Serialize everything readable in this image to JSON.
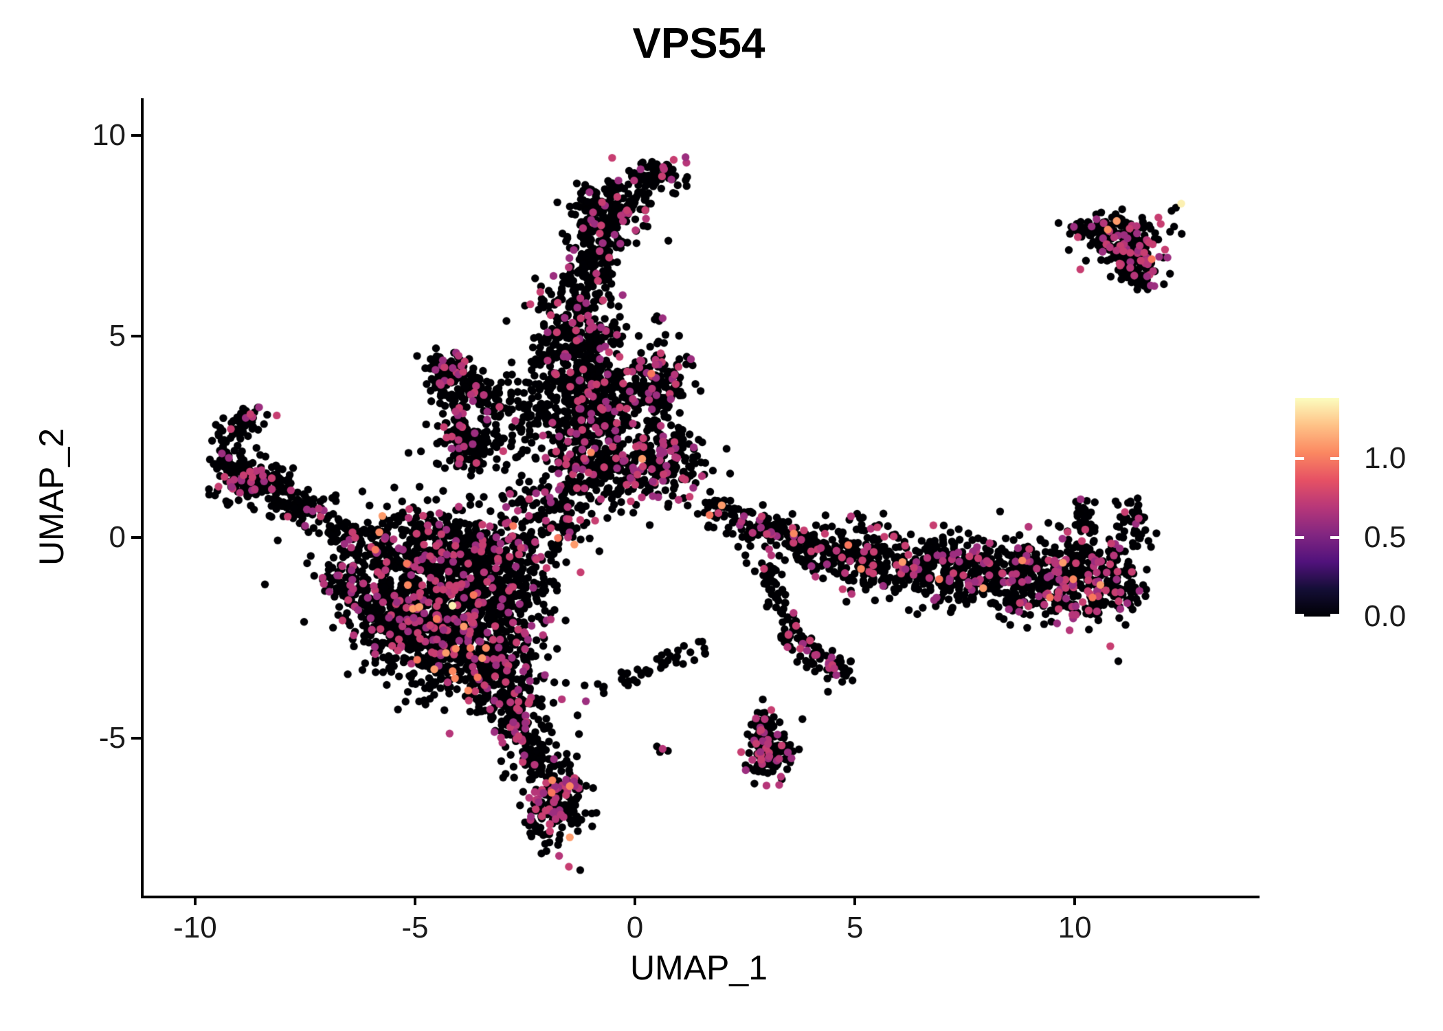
{
  "chart_data": {
    "type": "scatter",
    "title": "VPS54",
    "xlabel": "UMAP_1",
    "ylabel": "UMAP_2",
    "xlim": [
      -11.17,
      14.2
    ],
    "ylim": [
      -8.91,
      10.92
    ],
    "grid": false,
    "legend_position": "right",
    "x_ticks": [
      {
        "v": -10,
        "label": "-10"
      },
      {
        "v": -5,
        "label": "-5"
      },
      {
        "v": 0,
        "label": "0"
      },
      {
        "v": 5,
        "label": "5"
      },
      {
        "v": 10,
        "label": "10"
      }
    ],
    "y_ticks": [
      {
        "v": -5,
        "label": "-5"
      },
      {
        "v": 0,
        "label": "0"
      },
      {
        "v": 5,
        "label": "5"
      },
      {
        "v": 10,
        "label": "10"
      }
    ],
    "point_radius": 5.7,
    "seed": 42,
    "palette": {
      "black": "#000004",
      "mid": [
        "#9c2e7f",
        "#b63679",
        "#c73e71"
      ],
      "high": [
        "#f8765c",
        "#fb8861",
        "#fd9b6b"
      ],
      "max": "#fcf0b2"
    },
    "colorbar": {
      "max_value": 1.38,
      "ticks": [
        {
          "v": 0.0,
          "label": "0.0"
        },
        {
          "v": 0.5,
          "label": "0.5"
        },
        {
          "v": 1.0,
          "label": "1.0"
        }
      ],
      "stops": [
        [
          0,
          "#000004"
        ],
        [
          0.125,
          "#140e36"
        ],
        [
          0.25,
          "#51127c"
        ],
        [
          0.375,
          "#822681"
        ],
        [
          0.5,
          "#b73779"
        ],
        [
          0.625,
          "#e65164"
        ],
        [
          0.75,
          "#fb8861"
        ],
        [
          0.875,
          "#fec287"
        ],
        [
          1,
          "#fcfdbf"
        ]
      ]
    },
    "clusters": [
      {
        "id": "top-small-blob",
        "kind": "gauss",
        "cx": 0.55,
        "cy": 9.05,
        "sx": 0.3,
        "sy": 0.22,
        "n": 70,
        "mix": {
          "mid": 0.14,
          "high": 0.01
        }
      },
      {
        "id": "top-main-blob",
        "kind": "gauss",
        "cx": -0.55,
        "cy": 8.15,
        "sx": 0.5,
        "sy": 0.33,
        "n": 170,
        "mix": {
          "mid": 0.12
        }
      },
      {
        "id": "top-blob-bridge",
        "kind": "gauss",
        "cx": 0.0,
        "cy": 8.72,
        "sx": 0.3,
        "sy": 0.18,
        "n": 16,
        "mix": {
          "mid": 0.06
        }
      },
      {
        "id": "streak-upper",
        "kind": "line",
        "x1": -0.75,
        "y1": 7.7,
        "x2": -1.15,
        "y2": 6.3,
        "w": 0.3,
        "n": 130,
        "mix": {
          "mid": 0.09
        }
      },
      {
        "id": "streak-mid",
        "kind": "gauss",
        "cx": -1.35,
        "cy": 5.35,
        "sx": 0.5,
        "sy": 0.7,
        "n": 250,
        "mix": {
          "mid": 0.1,
          "high": 0.004
        }
      },
      {
        "id": "streak-low",
        "kind": "gauss",
        "cx": -1.25,
        "cy": 4.0,
        "sx": 0.55,
        "sy": 0.5,
        "n": 220,
        "mix": {
          "mid": 0.11,
          "high": 0.008
        }
      },
      {
        "id": "column-mid",
        "kind": "gauss",
        "cx": -1.05,
        "cy": 2.95,
        "sx": 0.5,
        "sy": 0.5,
        "n": 170,
        "mix": {
          "mid": 0.12
        }
      },
      {
        "id": "column-low",
        "kind": "gauss",
        "cx": -0.95,
        "cy": 1.85,
        "sx": 0.6,
        "sy": 0.55,
        "n": 240,
        "mix": {
          "mid": 0.13,
          "high": 0.008
        }
      },
      {
        "id": "right-top-blob",
        "kind": "gauss",
        "cx": 0.5,
        "cy": 3.85,
        "sx": 0.35,
        "sy": 0.45,
        "n": 160,
        "mix": {
          "mid": 0.12,
          "high": 0.01
        }
      },
      {
        "id": "right-mid-band",
        "kind": "gauss",
        "cx": 0.6,
        "cy": 1.8,
        "sx": 0.55,
        "sy": 0.45,
        "n": 190,
        "mix": {
          "mid": 0.2,
          "high": 0.01
        }
      },
      {
        "id": "column-right-sparse",
        "kind": "gauss",
        "cx": -0.05,
        "cy": 2.95,
        "sx": 0.45,
        "sy": 0.6,
        "n": 60,
        "mix": {
          "mid": 0.1
        }
      },
      {
        "id": "triangle-left-edge",
        "kind": "line",
        "x1": -4.55,
        "y1": 4.3,
        "x2": -3.55,
        "y2": 1.75,
        "w": 0.17,
        "n": 115,
        "mix": {
          "mid": 0.1
        }
      },
      {
        "id": "triangle-right-edge",
        "kind": "line",
        "x1": -4.3,
        "y1": 4.35,
        "x2": -2.95,
        "y2": 2.95,
        "w": 0.2,
        "n": 95,
        "mix": {
          "mid": 0.09
        }
      },
      {
        "id": "triangle-fill",
        "kind": "gauss",
        "cx": -3.6,
        "cy": 2.35,
        "sx": 0.5,
        "sy": 0.4,
        "n": 115,
        "mix": {
          "mid": 0.1
        }
      },
      {
        "id": "triangle-apex",
        "kind": "gauss",
        "cx": -4.32,
        "cy": 4.25,
        "sx": 0.24,
        "sy": 0.18,
        "n": 55,
        "mix": {
          "mid": 0.12
        }
      },
      {
        "id": "triangle-neck",
        "kind": "gauss",
        "cx": -2.4,
        "cy": 3.3,
        "sx": 0.45,
        "sy": 0.55,
        "n": 65,
        "mix": {
          "mid": 0.08
        }
      },
      {
        "id": "left-hook-curve",
        "kind": "arc",
        "cx": -8.45,
        "cy": 2.15,
        "r": 0.85,
        "a1": 95,
        "a2": 262,
        "w": 0.18,
        "n": 115,
        "mix": {
          "mid": 0.12
        }
      },
      {
        "id": "left-hook-knot",
        "kind": "gauss",
        "cx": -8.9,
        "cy": 1.45,
        "sx": 0.32,
        "sy": 0.3,
        "n": 95,
        "mix": {
          "mid": 0.13
        }
      },
      {
        "id": "left-hook-arm",
        "kind": "line",
        "x1": -8.55,
        "y1": 1.5,
        "x2": -7.15,
        "y2": 0.4,
        "w": 0.25,
        "n": 125,
        "mix": {
          "mid": 0.1,
          "high": 0.008
        }
      },
      {
        "id": "left-hook-trail",
        "kind": "line",
        "x1": -7.1,
        "y1": 0.35,
        "x2": -6.35,
        "y2": 0.05,
        "w": 0.18,
        "n": 30,
        "mix": {
          "mid": 0.06
        }
      },
      {
        "id": "mass-top",
        "kind": "gauss",
        "cx": -4.6,
        "cy": -0.35,
        "sx": 1.15,
        "sy": 0.55,
        "n": 520,
        "mix": {
          "mid": 0.12,
          "high": 0.008
        }
      },
      {
        "id": "mass-core",
        "kind": "gauss",
        "cx": -4.55,
        "cy": -1.7,
        "sx": 1.0,
        "sy": 0.75,
        "n": 700,
        "mix": {
          "mid": 0.13,
          "high": 0.012
        }
      },
      {
        "id": "mass-right",
        "kind": "gauss",
        "cx": -3.0,
        "cy": -1.15,
        "sx": 0.6,
        "sy": 0.9,
        "n": 300,
        "mix": {
          "mid": 0.12,
          "high": 0.006
        }
      },
      {
        "id": "mass-bottom",
        "kind": "gauss",
        "cx": -3.85,
        "cy": -3.0,
        "sx": 0.7,
        "sy": 0.55,
        "n": 330,
        "mix": {
          "mid": 0.13,
          "high": 0.015,
          "max": 0.003
        }
      },
      {
        "id": "mass-tip",
        "kind": "gauss",
        "cx": -2.95,
        "cy": -3.9,
        "sx": 0.45,
        "sy": 0.4,
        "n": 135,
        "mix": {
          "mid": 0.12
        }
      },
      {
        "id": "mass-left-edge",
        "kind": "line",
        "x1": -6.85,
        "y1": -0.65,
        "x2": -5.1,
        "y2": -2.7,
        "w": 0.3,
        "n": 140,
        "mix": {
          "mid": 0.1
        }
      },
      {
        "id": "mass-column-neck",
        "kind": "gauss",
        "cx": -1.95,
        "cy": 0.65,
        "sx": 0.5,
        "sy": 0.5,
        "n": 115,
        "mix": {
          "mid": 0.12,
          "high": 0.008
        }
      },
      {
        "id": "mass-arm-down",
        "kind": "line",
        "x1": -2.85,
        "y1": -4.25,
        "x2": -2.2,
        "y2": -5.8,
        "w": 0.28,
        "n": 130,
        "mix": {
          "mid": 0.13
        }
      },
      {
        "id": "tail-leg",
        "kind": "gauss",
        "cx": -1.8,
        "cy": -6.6,
        "sx": 0.34,
        "sy": 0.55,
        "n": 200,
        "mix": {
          "mid": 0.22,
          "high": 0.012
        }
      },
      {
        "id": "bottom-bridge-arc",
        "kind": "line",
        "x1": -1.15,
        "y1": -3.95,
        "x2": 1.6,
        "y2": -2.7,
        "w": 0.14,
        "n": 42,
        "mix": {
          "mid": 0.07
        }
      },
      {
        "id": "comet-tail",
        "kind": "line",
        "x1": 2.8,
        "y1": -4.25,
        "x2": 3.0,
        "y2": -4.95,
        "w": 0.17,
        "n": 35,
        "mix": {
          "mid": 0.15
        }
      },
      {
        "id": "comet-head",
        "kind": "gauss",
        "cx": 3.08,
        "cy": -5.35,
        "sx": 0.27,
        "sy": 0.33,
        "n": 115,
        "mix": {
          "mid": 0.22,
          "high": 0.012
        }
      },
      {
        "id": "band-start-sparse",
        "kind": "line",
        "x1": 1.55,
        "y1": 0.85,
        "x2": 2.65,
        "y2": 0.2,
        "w": 0.2,
        "n": 55,
        "mix": {
          "mid": 0.09,
          "high": 0.018
        }
      },
      {
        "id": "band-mid",
        "kind": "line",
        "x1": 2.65,
        "y1": 0.3,
        "x2": 4.6,
        "y2": -0.5,
        "w": 0.3,
        "n": 175,
        "mix": {
          "mid": 0.12,
          "high": 0.006
        }
      },
      {
        "id": "band-main",
        "kind": "line",
        "x1": 4.6,
        "y1": -0.5,
        "x2": 8.2,
        "y2": -0.95,
        "w": 0.42,
        "n": 480,
        "mix": {
          "mid": 0.13,
          "high": 0.01
        }
      },
      {
        "id": "band-right",
        "kind": "line",
        "x1": 8.2,
        "y1": -0.95,
        "x2": 11.3,
        "y2": -1.1,
        "w": 0.52,
        "n": 530,
        "mix": {
          "mid": 0.16,
          "high": 0.006
        }
      },
      {
        "id": "band-end-hook",
        "kind": "line",
        "x1": 11.35,
        "y1": -0.25,
        "x2": 11.28,
        "y2": 0.9,
        "w": 0.16,
        "n": 40,
        "mix": {
          "mid": 0.18
        }
      },
      {
        "id": "band-spur",
        "kind": "line",
        "x1": 10.32,
        "y1": 0.05,
        "x2": 10.15,
        "y2": 0.95,
        "w": 0.14,
        "n": 26,
        "mix": {
          "mid": 0.2
        }
      },
      {
        "id": "spur-down",
        "kind": "line",
        "x1": 3.08,
        "y1": -0.75,
        "x2": 3.35,
        "y2": -2.1,
        "w": 0.14,
        "n": 46,
        "mix": {
          "mid": 0.12
        }
      },
      {
        "id": "diagonal-arm",
        "kind": "line",
        "x1": 3.35,
        "y1": -2.35,
        "x2": 4.5,
        "y2": -3.2,
        "w": 0.17,
        "n": 60,
        "mix": {
          "mid": 0.15
        }
      },
      {
        "id": "arm-end-knot",
        "kind": "gauss",
        "cx": 4.62,
        "cy": -3.28,
        "sx": 0.2,
        "sy": 0.18,
        "n": 26,
        "mix": {
          "mid": 0.22
        }
      },
      {
        "id": "topright-left-clump",
        "kind": "gauss",
        "cx": 10.2,
        "cy": 7.62,
        "sx": 0.22,
        "sy": 0.16,
        "n": 26,
        "mix": {
          "mid": 0.1
        }
      },
      {
        "id": "topright-main",
        "kind": "gauss",
        "cx": 11.15,
        "cy": 7.3,
        "sx": 0.48,
        "sy": 0.33,
        "rot": -20,
        "n": 175,
        "mix": {
          "mid": 0.22,
          "high": 0.006
        }
      },
      {
        "id": "topright-tail",
        "kind": "line",
        "x1": 11.35,
        "y1": 7.0,
        "x2": 11.55,
        "y2": 6.25,
        "w": 0.18,
        "n": 60,
        "mix": {
          "mid": 0.25
        }
      },
      {
        "id": "topright-top-sparse",
        "kind": "line",
        "x1": 10.6,
        "y1": 7.92,
        "x2": 11.9,
        "y2": 7.78,
        "w": 0.1,
        "n": 18,
        "mix": {
          "mid": 0.1
        }
      },
      {
        "id": "topright-outlier",
        "kind": "points",
        "pts": [
          [
            12.2,
            8.12,
            0
          ],
          [
            12.3,
            8.2,
            0
          ],
          [
            12.42,
            8.3,
            3
          ]
        ]
      },
      {
        "id": "isolated-left-dots",
        "kind": "points",
        "pts": [
          [
            -6.88,
            0.98,
            0
          ],
          [
            -6.8,
            0.9,
            0
          ]
        ]
      },
      {
        "id": "isolated-mid-pair",
        "kind": "points",
        "pts": [
          [
            0.5,
            5.5,
            0
          ],
          [
            0.63,
            5.45,
            1
          ],
          [
            0.55,
            5.38,
            0
          ],
          [
            0.45,
            5.42,
            0
          ]
        ]
      },
      {
        "id": "isolated-bottom-pair",
        "kind": "points",
        "pts": [
          [
            0.5,
            -5.2,
            0
          ],
          [
            0.63,
            -5.26,
            1
          ],
          [
            0.75,
            -5.31,
            0
          ],
          [
            0.57,
            -5.34,
            0
          ]
        ]
      }
    ]
  }
}
